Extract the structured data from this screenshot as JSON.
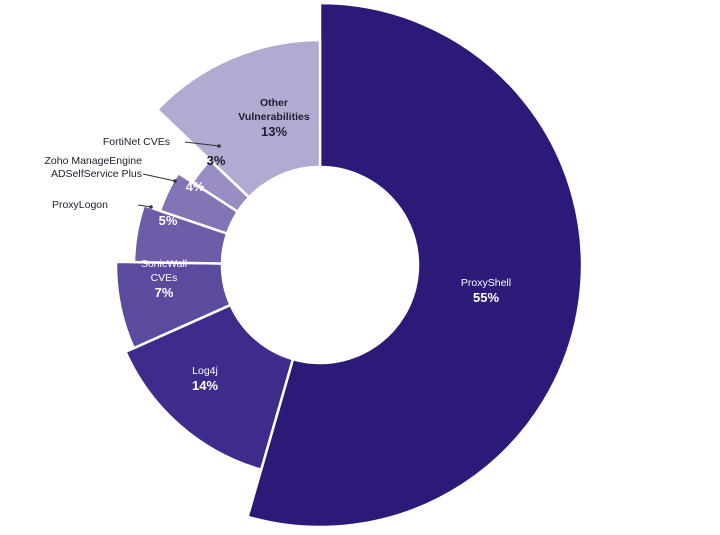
{
  "chart_data": {
    "type": "pie",
    "title": "",
    "categories": [
      "ProxyShell",
      "Log4j",
      "SonicWall CVEs",
      "ProxyLogon",
      "Zoho ManageEngine ADSelfService Plus",
      "FortiNet CVEs",
      "Other Vulnerabilities"
    ],
    "values": [
      55,
      14,
      7,
      5,
      4,
      3,
      13
    ],
    "value_labels": [
      "55%",
      "14%",
      "7%",
      "5%",
      "4%",
      "3%",
      "13%"
    ],
    "slices": [
      {
        "label_lines": [
          "ProxyShell"
        ],
        "value": 55,
        "value_label": "55%",
        "color": "#2d1a78",
        "text_color": "#ffffff"
      },
      {
        "label_lines": [
          "Log4j"
        ],
        "value": 14,
        "value_label": "14%",
        "color": "#3e2b8c",
        "text_color": "#ffffff"
      },
      {
        "label_lines": [
          "SonicWall",
          "CVEs"
        ],
        "value": 7,
        "value_label": "7%",
        "color": "#5c4a9e",
        "text_color": "#ffffff"
      },
      {
        "label_lines": [
          "ProxyLogon"
        ],
        "value": 5,
        "value_label": "5%",
        "color": "#6e5ca9",
        "text_color": "#ffffff"
      },
      {
        "label_lines": [
          "Zoho ManageEngine",
          "ADSelfService Plus"
        ],
        "value": 4,
        "value_label": "4%",
        "color": "#8474b5",
        "text_color": "#ffffff"
      },
      {
        "label_lines": [
          "FortiNet CVEs"
        ],
        "value": 3,
        "value_label": "3%",
        "color": "#9a8dc4",
        "text_color": "#1e1e2e"
      },
      {
        "label_lines": [
          "Other",
          "Vulnerabilities"
        ],
        "value": 13,
        "value_label": "13%",
        "color": "#b3aad2",
        "text_color": "#1e1e2e"
      }
    ],
    "legend": "callout-labels"
  }
}
